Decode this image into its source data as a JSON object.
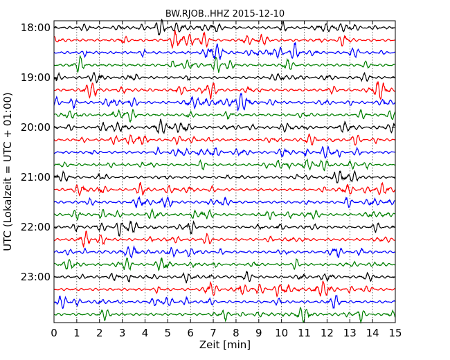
{
  "chart_data": {
    "type": "line",
    "title": "BW.RJOB..HHZ 2015-12-10",
    "xlabel": "Zeit  [min]",
    "ylabel": "UTC (Lokalzeit = UTC + 01:00)",
    "xlim": [
      0,
      15
    ],
    "x_ticks": [
      "0",
      "1",
      "2",
      "3",
      "4",
      "5",
      "6",
      "7",
      "8",
      "9",
      "10",
      "11",
      "12",
      "13",
      "14",
      "15"
    ],
    "y_tick_labels": [
      "18:00",
      "19:00",
      "20:00",
      "21:00",
      "22:00",
      "23:00"
    ],
    "rows_per_hour": 4,
    "start_time": "18:00",
    "end_time": "24:00",
    "trace_count": 24,
    "trace_colors": [
      "#000000",
      "#ff0000",
      "#0000ff",
      "#008000"
    ],
    "grid": "vertical dotted lines at each minute",
    "series_type": "seismogram trace per 15-minute row (waveform)"
  }
}
